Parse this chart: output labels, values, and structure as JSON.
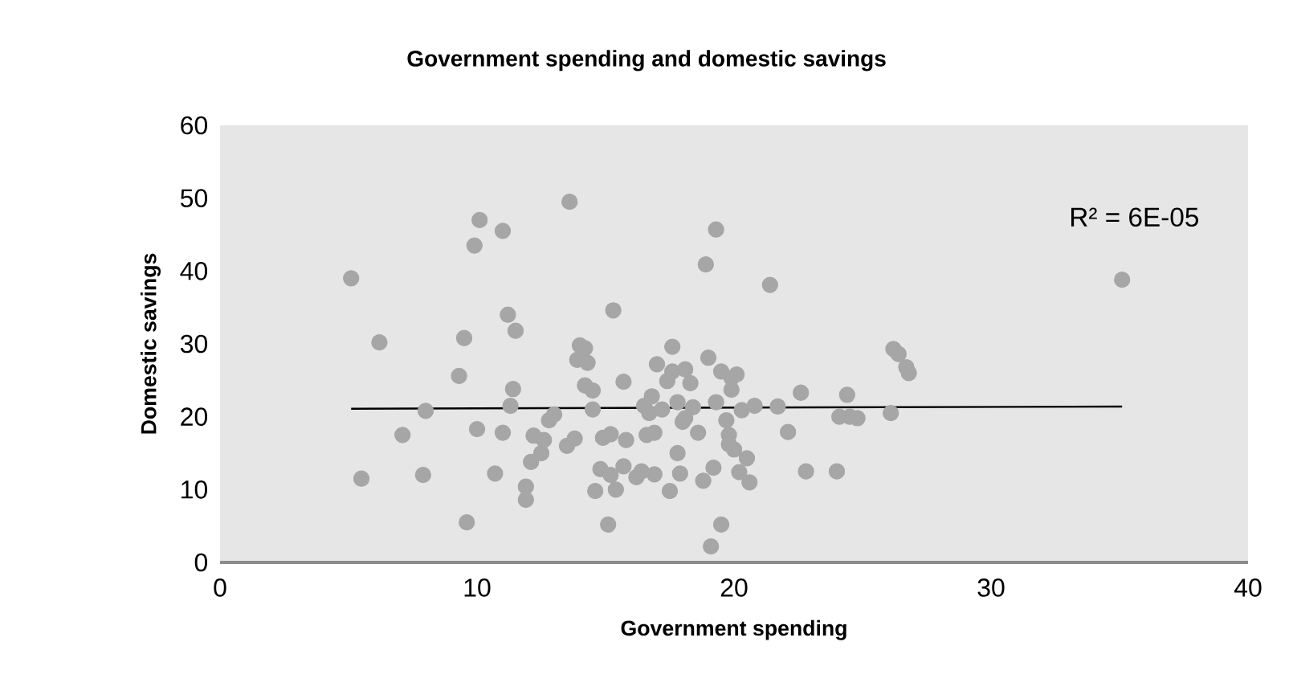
{
  "chart_data": {
    "type": "scatter",
    "title": "Government spending and domestic savings",
    "xlabel": "Government spending",
    "ylabel": "Domestic savings",
    "xlim": [
      0,
      40
    ],
    "ylim": [
      0,
      60
    ],
    "xticks": [
      0,
      10,
      20,
      30,
      40
    ],
    "yticks": [
      0,
      10,
      20,
      30,
      40,
      50,
      60
    ],
    "annotations": [
      "R² = 6E-05"
    ],
    "series": [
      {
        "type": "scatter",
        "marker": "circle",
        "color": "#a6a6a6",
        "x": [
          5.1,
          5.5,
          6.2,
          7.1,
          7.9,
          8,
          9.3,
          9.5,
          9.6,
          9.9,
          10,
          10.1,
          10.7,
          11,
          11,
          11.2,
          11.3,
          11.4,
          11.5,
          11.9,
          11.9,
          12.1,
          12.2,
          12.5,
          12.6,
          12.8,
          13,
          13.5,
          13.8,
          13.6,
          13.9,
          14,
          14.2,
          14.2,
          14.3,
          14.5,
          14.5,
          14.6,
          14.8,
          14.9,
          15.1,
          15.2,
          15.3,
          15.2,
          15.4,
          15.7,
          15.7,
          15.8,
          16.2,
          16.4,
          16.5,
          16.6,
          16.7,
          16.8,
          16.9,
          16.9,
          17,
          17.2,
          17.4,
          17.5,
          17.6,
          17.6,
          17.8,
          17.8,
          17.9,
          18,
          18.1,
          18.1,
          18.3,
          18.4,
          18.6,
          18.8,
          18.9,
          19,
          19.1,
          19.2,
          19.3,
          19.5,
          19.3,
          19.5,
          19.7,
          19.8,
          19.8,
          19.9,
          19.9,
          20,
          20.1,
          20.2,
          20.3,
          20.5,
          20.6,
          20.8,
          21.4,
          21.7,
          22.1,
          22.6,
          22.8,
          24,
          24.1,
          24.5,
          24.4,
          24.8,
          26.1,
          26.2,
          26.4,
          26.7,
          26.8,
          35.1
        ],
        "values": [
          39,
          11.5,
          30.2,
          17.5,
          12,
          20.8,
          25.6,
          30.8,
          5.5,
          43.5,
          18.3,
          47,
          12.2,
          45.5,
          17.8,
          34,
          21.5,
          23.8,
          31.8,
          10.4,
          8.6,
          13.8,
          17.4,
          15,
          16.8,
          19.5,
          20.3,
          16,
          17,
          49.5,
          27.8,
          29.8,
          24.3,
          29.4,
          27.4,
          21,
          23.6,
          9.8,
          12.8,
          17.1,
          5.2,
          12,
          34.6,
          17.6,
          10,
          24.8,
          13.2,
          16.8,
          11.7,
          12.5,
          21.5,
          17.5,
          20.5,
          22.8,
          17.8,
          12.1,
          27.2,
          21,
          24.9,
          9.8,
          26.2,
          29.6,
          22,
          15,
          12.2,
          19.3,
          26.5,
          19.8,
          24.6,
          21.3,
          17.8,
          11.2,
          40.9,
          28.1,
          2.2,
          13,
          45.7,
          26.2,
          22,
          5.2,
          19.5,
          17.5,
          16.2,
          25.3,
          23.7,
          15.5,
          25.8,
          12.4,
          20.9,
          14.3,
          11,
          21.5,
          38.1,
          21.4,
          17.9,
          23.3,
          12.5,
          12.5,
          20,
          20,
          23,
          19.8,
          20.5,
          29.3,
          28.6,
          26.8,
          26,
          38.8
        ]
      },
      {
        "type": "line",
        "marker": "none",
        "color": "#000000",
        "x": [
          5.1,
          35.1
        ],
        "values": [
          21.1,
          21.4
        ]
      }
    ]
  }
}
